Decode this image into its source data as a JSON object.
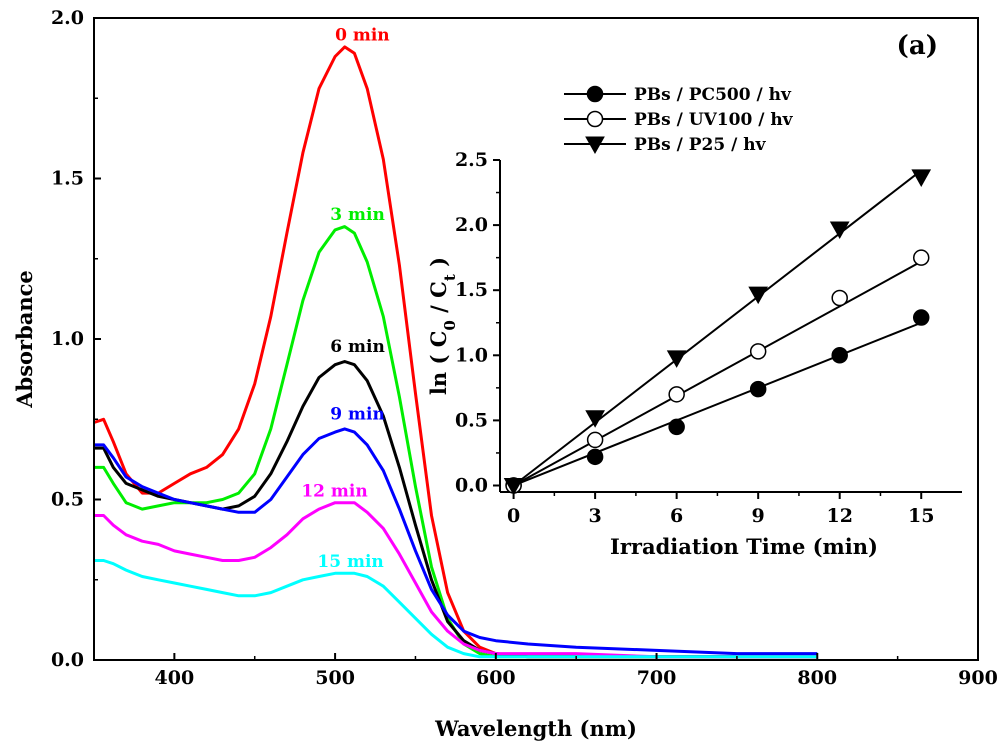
{
  "panel_label": "(a)",
  "chart_data": [
    {
      "type": "line",
      "xlabel": "Wavelength (nm)",
      "ylabel": "Absorbance",
      "xlim": [
        350,
        900
      ],
      "ylim": [
        0,
        2.0
      ],
      "xticks": [
        400,
        500,
        600,
        700,
        800,
        900
      ],
      "yticks": [
        0.0,
        0.5,
        1.0,
        1.5,
        2.0
      ],
      "xtick_labels": [
        "400",
        "500",
        "600",
        "700",
        "800",
        "900"
      ],
      "ytick_labels": [
        "0.0",
        "0.5",
        "1.0",
        "1.5",
        "2.0"
      ],
      "grid": false,
      "series": [
        {
          "name": "0 min",
          "color": "#ff0000",
          "x": [
            350,
            356,
            362,
            370,
            380,
            390,
            400,
            410,
            420,
            430,
            440,
            450,
            460,
            470,
            480,
            490,
            500,
            506,
            512,
            520,
            530,
            540,
            550,
            560,
            570,
            580,
            590,
            600,
            620,
            650,
            700,
            750,
            800
          ],
          "y": [
            0.74,
            0.75,
            0.68,
            0.58,
            0.52,
            0.52,
            0.55,
            0.58,
            0.6,
            0.64,
            0.72,
            0.86,
            1.07,
            1.33,
            1.58,
            1.78,
            1.88,
            1.91,
            1.89,
            1.78,
            1.56,
            1.23,
            0.83,
            0.45,
            0.21,
            0.09,
            0.04,
            0.02,
            0.01,
            0.01,
            0.01,
            0.01,
            0.01
          ]
        },
        {
          "name": "3 min",
          "color": "#00ee00",
          "x": [
            350,
            356,
            362,
            370,
            380,
            390,
            400,
            410,
            420,
            430,
            440,
            450,
            460,
            470,
            480,
            490,
            500,
            506,
            512,
            520,
            530,
            540,
            550,
            560,
            570,
            580,
            590,
            600,
            620,
            650,
            700,
            750,
            800
          ],
          "y": [
            0.6,
            0.6,
            0.55,
            0.49,
            0.47,
            0.48,
            0.49,
            0.49,
            0.49,
            0.5,
            0.52,
            0.58,
            0.72,
            0.92,
            1.12,
            1.27,
            1.34,
            1.35,
            1.33,
            1.24,
            1.07,
            0.82,
            0.54,
            0.29,
            0.13,
            0.05,
            0.02,
            0.01,
            0.01,
            0.01,
            0.01,
            0.01,
            0.01
          ]
        },
        {
          "name": "6 min",
          "color": "#000000",
          "x": [
            350,
            356,
            362,
            370,
            380,
            390,
            400,
            410,
            420,
            430,
            440,
            450,
            460,
            470,
            480,
            490,
            500,
            506,
            512,
            520,
            530,
            540,
            550,
            560,
            570,
            580,
            590,
            600,
            620,
            650,
            700,
            750,
            800
          ],
          "y": [
            0.66,
            0.66,
            0.6,
            0.55,
            0.53,
            0.51,
            0.5,
            0.49,
            0.48,
            0.47,
            0.48,
            0.51,
            0.58,
            0.68,
            0.79,
            0.88,
            0.92,
            0.93,
            0.92,
            0.87,
            0.76,
            0.6,
            0.42,
            0.25,
            0.12,
            0.06,
            0.03,
            0.02,
            0.01,
            0.01,
            0.01,
            0.01,
            0.01
          ]
        },
        {
          "name": "9 min",
          "color": "#0000ff",
          "x": [
            350,
            356,
            362,
            370,
            380,
            390,
            400,
            410,
            420,
            430,
            440,
            450,
            460,
            470,
            480,
            490,
            500,
            506,
            512,
            520,
            530,
            540,
            550,
            560,
            570,
            580,
            590,
            600,
            620,
            650,
            700,
            750,
            800
          ],
          "y": [
            0.67,
            0.67,
            0.63,
            0.57,
            0.54,
            0.52,
            0.5,
            0.49,
            0.48,
            0.47,
            0.46,
            0.46,
            0.5,
            0.57,
            0.64,
            0.69,
            0.71,
            0.72,
            0.71,
            0.67,
            0.59,
            0.47,
            0.34,
            0.22,
            0.14,
            0.09,
            0.07,
            0.06,
            0.05,
            0.04,
            0.03,
            0.02,
            0.02
          ]
        },
        {
          "name": "12 min",
          "color": "#ff00ff",
          "x": [
            350,
            356,
            362,
            370,
            380,
            390,
            400,
            410,
            420,
            430,
            440,
            450,
            460,
            470,
            480,
            490,
            500,
            506,
            512,
            520,
            530,
            540,
            550,
            560,
            570,
            580,
            590,
            600,
            620,
            650,
            700,
            750,
            800
          ],
          "y": [
            0.45,
            0.45,
            0.42,
            0.39,
            0.37,
            0.36,
            0.34,
            0.33,
            0.32,
            0.31,
            0.31,
            0.32,
            0.35,
            0.39,
            0.44,
            0.47,
            0.49,
            0.49,
            0.49,
            0.46,
            0.41,
            0.33,
            0.24,
            0.15,
            0.09,
            0.05,
            0.03,
            0.02,
            0.02,
            0.02,
            0.01,
            0.01,
            0.01
          ]
        },
        {
          "name": "15 min",
          "color": "#00ffff",
          "x": [
            350,
            356,
            362,
            370,
            380,
            390,
            400,
            410,
            420,
            430,
            440,
            450,
            460,
            470,
            480,
            490,
            500,
            506,
            512,
            520,
            530,
            540,
            550,
            560,
            570,
            580,
            590,
            600,
            620,
            650,
            700,
            750,
            800
          ],
          "y": [
            0.31,
            0.31,
            0.3,
            0.28,
            0.26,
            0.25,
            0.24,
            0.23,
            0.22,
            0.21,
            0.2,
            0.2,
            0.21,
            0.23,
            0.25,
            0.26,
            0.27,
            0.27,
            0.27,
            0.26,
            0.23,
            0.18,
            0.13,
            0.08,
            0.04,
            0.02,
            0.01,
            0.01,
            0.01,
            0.01,
            0.01,
            0.01,
            0.01
          ]
        }
      ],
      "curve_labels": [
        {
          "text": "0 min",
          "x": 500,
          "y": 1.93,
          "color": "#ff0000"
        },
        {
          "text": "3 min",
          "x": 497,
          "y": 1.37,
          "color": "#00ee00"
        },
        {
          "text": "6 min",
          "x": 497,
          "y": 0.96,
          "color": "#000000"
        },
        {
          "text": "9 min",
          "x": 497,
          "y": 0.75,
          "color": "#0000ff"
        },
        {
          "text": "12 min",
          "x": 479,
          "y": 0.51,
          "color": "#ff00ff"
        },
        {
          "text": "15 min",
          "x": 489,
          "y": 0.29,
          "color": "#00ffff"
        }
      ]
    },
    {
      "type": "line",
      "xlabel": "Irradiation Time (min)",
      "ylabel_parts": [
        "ln ( C",
        "0",
        " / C",
        "t",
        " )"
      ],
      "xlim": [
        -0.5,
        16.5
      ],
      "ylim": [
        -0.05,
        2.5
      ],
      "xticks": [
        0,
        3,
        6,
        9,
        12,
        15
      ],
      "yticks": [
        0.0,
        0.5,
        1.0,
        1.5,
        2.0,
        2.5
      ],
      "xtick_labels": [
        "0",
        "3",
        "6",
        "9",
        "12",
        "15"
      ],
      "ytick_labels": [
        "0.0",
        "0.5",
        "1.0",
        "1.5",
        "2.0",
        "2.5"
      ],
      "grid": false,
      "legend_position": "top-left",
      "series": [
        {
          "name": "PBs / PC500 / hv",
          "marker": "filled-circle",
          "x": [
            0,
            3,
            6,
            9,
            12,
            15
          ],
          "y": [
            0.0,
            0.22,
            0.45,
            0.74,
            1.0,
            1.29
          ],
          "fit": [
            [
              0,
              0.0
            ],
            [
              15,
              1.25
            ]
          ]
        },
        {
          "name": "PBs / UV100 / hv",
          "marker": "open-circle",
          "x": [
            0,
            3,
            6,
            9,
            12,
            15
          ],
          "y": [
            0.0,
            0.35,
            0.7,
            1.03,
            1.44,
            1.75
          ],
          "fit": [
            [
              0,
              0.0
            ],
            [
              15,
              1.72
            ]
          ]
        },
        {
          "name": "PBs / P25 / hv",
          "marker": "filled-triangle-down",
          "x": [
            0,
            3,
            6,
            9,
            12,
            15
          ],
          "y": [
            0.0,
            0.52,
            0.98,
            1.47,
            1.97,
            2.37
          ],
          "fit": [
            [
              0,
              0.0
            ],
            [
              15,
              2.42
            ]
          ]
        }
      ]
    }
  ]
}
